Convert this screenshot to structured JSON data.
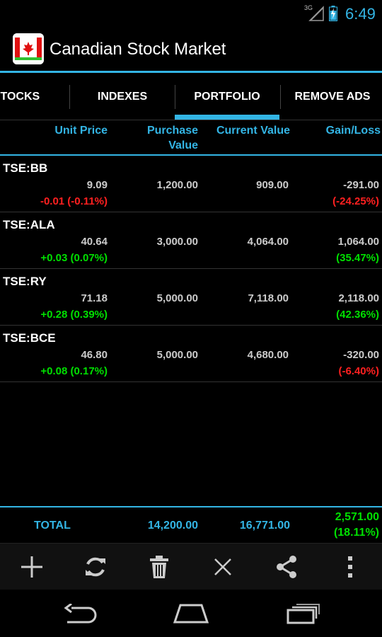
{
  "status_bar": {
    "network": "3G",
    "time": "6:49"
  },
  "action_bar": {
    "title": "Canadian Stock Market",
    "icon": "canada-flag-icon"
  },
  "tabs": [
    {
      "label": "STOCKS",
      "selected": false
    },
    {
      "label": "INDEXES",
      "selected": false
    },
    {
      "label": "PORTFOLIO",
      "selected": true
    },
    {
      "label": "REMOVE ADS",
      "selected": false
    }
  ],
  "columns": {
    "unit_price": "Unit Price",
    "purchase_value_1": "Purchase",
    "purchase_value_2": "Value",
    "current_value": "Current Value",
    "gain_loss": "Gain/Loss"
  },
  "rows": [
    {
      "symbol": "TSE:BB",
      "price": "9.09",
      "change": "-0.01 (-0.11%)",
      "purchase": "1,200.00",
      "current": "909.00",
      "gain": "-291.00",
      "gain_pct": "(-24.25%)"
    },
    {
      "symbol": "TSE:ALA",
      "price": "40.64",
      "change": "+0.03 (0.07%)",
      "purchase": "3,000.00",
      "current": "4,064.00",
      "gain": "1,064.00",
      "gain_pct": "(35.47%)"
    },
    {
      "symbol": "TSE:RY",
      "price": "71.18",
      "change": "+0.28 (0.39%)",
      "purchase": "5,000.00",
      "current": "7,118.00",
      "gain": "2,118.00",
      "gain_pct": "(42.36%)"
    },
    {
      "symbol": "TSE:BCE",
      "price": "46.80",
      "change": "+0.08 (0.17%)",
      "purchase": "5,000.00",
      "current": "4,680.00",
      "gain": "-320.00",
      "gain_pct": "(-6.40%)"
    }
  ],
  "totals": {
    "label": "TOTAL",
    "purchase": "14,200.00",
    "current": "16,771.00",
    "gain": "2,571.00",
    "gain_pct": "(18.11%)"
  },
  "bottom_actions": [
    "add-icon",
    "refresh-icon",
    "delete-icon",
    "close-icon",
    "share-icon",
    "overflow-menu-icon"
  ],
  "nav": [
    "back-icon",
    "home-icon",
    "recent-apps-icon"
  ],
  "colors": {
    "accent": "#33b5e5",
    "positive": "#00e000",
    "negative": "#ff2020"
  }
}
